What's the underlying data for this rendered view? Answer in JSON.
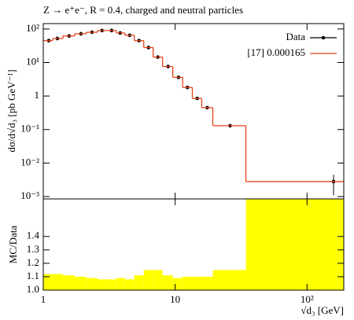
{
  "chart_data": [
    {
      "type": "step",
      "title": "Z → e⁺e⁻, R = 0.4, charged and neutral particles",
      "ylabel": "dσ/d√d₃ [pb GeV⁻¹]",
      "xlim": [
        1,
        190
      ],
      "log_x": true,
      "ylim": [
        0.00085,
        145
      ],
      "log_y": true,
      "yticks": [
        {
          "value": 100,
          "label": "10²"
        },
        {
          "value": 10,
          "label": "10¹"
        },
        1,
        {
          "value": 0.1,
          "label": "10⁻¹"
        },
        {
          "value": 0.01,
          "label": "10⁻²"
        },
        {
          "value": 0.001,
          "label": "10⁻³"
        }
      ],
      "legend": "upper right",
      "series": [
        {
          "name": "Data",
          "color": "#000000",
          "x": [
            1.1,
            1.28,
            1.57,
            1.93,
            2.34,
            2.79,
            3.3,
            3.83,
            4.52,
            5.32,
            6.28,
            7.39,
            8.84,
            10.6,
            12.4,
            14.7,
            17.5,
            26.1,
            159
          ],
          "values": [
            45,
            52,
            62,
            72,
            80,
            90,
            90,
            76,
            65,
            45,
            28,
            14.5,
            7.6,
            3.6,
            1.8,
            0.85,
            0.45,
            0.13,
            0.0028
          ],
          "yerr": [
            0,
            0,
            0,
            0,
            0,
            0,
            0,
            0,
            0,
            0,
            0,
            0,
            0,
            0,
            0,
            0,
            0,
            0,
            0.0017
          ]
        },
        {
          "name": "[17] 0.000165",
          "color": "#e8431c",
          "bins": [
            1,
            1.18,
            1.41,
            1.73,
            2.12,
            2.58,
            3.03,
            3.58,
            4.16,
            4.9,
            5.78,
            6.81,
            8.03,
            9.6,
            11.4,
            13.5,
            15.9,
            19.3,
            34.4,
            190
          ],
          "values": [
            45,
            52,
            62,
            72,
            80,
            90,
            90,
            76,
            65,
            45,
            28,
            14.5,
            7.6,
            3.6,
            1.8,
            0.85,
            0.45,
            0.13,
            0.0028
          ]
        }
      ]
    },
    {
      "type": "histogram",
      "ylabel": "MC/Data",
      "xlabel": "√d₃ [GeV]",
      "xlim": [
        1,
        190
      ],
      "log_x": true,
      "xticks": [
        1,
        10,
        {
          "value": 100,
          "label": "10²"
        }
      ],
      "ylim": [
        1.0,
        1.68
      ],
      "yticks": [
        {
          "value": 1.0,
          "label": "1.0"
        },
        1.1,
        1.2,
        1.3,
        1.4
      ],
      "color": "#ffff00",
      "bins": [
        1,
        1.18,
        1.41,
        1.73,
        2.12,
        2.58,
        3.03,
        3.58,
        4.16,
        4.9,
        5.78,
        6.81,
        8.03,
        9.6,
        11.4,
        13.5,
        15.9,
        19.3,
        34.4,
        190
      ],
      "values": [
        1.12,
        1.12,
        1.11,
        1.1,
        1.09,
        1.08,
        1.08,
        1.09,
        1.08,
        1.11,
        1.15,
        1.15,
        1.11,
        1.09,
        1.1,
        1.1,
        1.1,
        1.15,
        1.7
      ]
    }
  ]
}
